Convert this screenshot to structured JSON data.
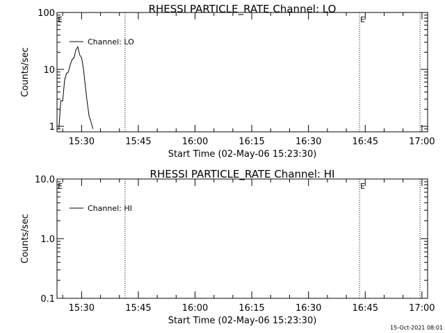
{
  "footer": {
    "timestamp": "15-Oct-2021 08:01"
  },
  "chart_data": [
    {
      "type": "line",
      "title": "RHESSI PARTICLE_RATE Channel: LO",
      "xlabel": "Start Time (02-May-06 15:23:30)",
      "ylabel": "Counts/sec",
      "yscale": "log",
      "ylim": [
        0.8,
        100
      ],
      "xlim": [
        "15:23:30",
        "17:01:30"
      ],
      "x_ticks": [
        "15:30",
        "15:45",
        "16:00",
        "16:15",
        "16:30",
        "16:45",
        "17:00"
      ],
      "y_ticks": [
        {
          "value": 1,
          "label": "1"
        },
        {
          "value": 10,
          "label": "10"
        },
        {
          "value": 100,
          "label": "100"
        }
      ],
      "event_markers": [
        {
          "time": "15:41:30",
          "label": ""
        },
        {
          "time": "16:43:30",
          "label": "E"
        },
        {
          "time": "16:59:30",
          "label": ""
        }
      ],
      "corner_label": "E",
      "legend": {
        "position": "top-left"
      },
      "series": [
        {
          "name": "Channel: LO",
          "x": [
            "15:24:00",
            "15:24:30",
            "15:25:00",
            "15:25:30",
            "15:26:00",
            "15:26:30",
            "15:27:00",
            "15:27:30",
            "15:28:00",
            "15:28:30",
            "15:29:00",
            "15:29:30",
            "15:30:00",
            "15:30:30",
            "15:31:00",
            "15:31:30",
            "15:32:00",
            "15:32:30",
            "15:33:00"
          ],
          "y": [
            0.9,
            2.8,
            2.8,
            6.5,
            8.5,
            9.0,
            12.0,
            15.0,
            16.0,
            22.0,
            25.0,
            18.0,
            16.0,
            10.0,
            5.0,
            2.6,
            1.5,
            1.2,
            0.9
          ]
        }
      ]
    },
    {
      "type": "line",
      "title": "RHESSI PARTICLE_RATE Channel: HI",
      "xlabel": "Start Time (02-May-06 15:23:30)",
      "ylabel": "Counts/sec",
      "yscale": "log",
      "ylim": [
        0.1,
        10
      ],
      "xlim": [
        "15:23:30",
        "17:01:30"
      ],
      "x_ticks": [
        "15:30",
        "15:45",
        "16:00",
        "16:15",
        "16:30",
        "16:45",
        "17:00"
      ],
      "y_ticks": [
        {
          "value": 0.1,
          "label": "0.1"
        },
        {
          "value": 1,
          "label": "1.0"
        },
        {
          "value": 10,
          "label": "10.0"
        }
      ],
      "event_markers": [
        {
          "time": "15:41:30",
          "label": ""
        },
        {
          "time": "16:43:30",
          "label": "E"
        },
        {
          "time": "16:59:30",
          "label": ""
        }
      ],
      "corner_label": "E",
      "legend": {
        "position": "top-left"
      },
      "series": [
        {
          "name": "Channel: HI",
          "x": [],
          "y": []
        }
      ]
    }
  ]
}
